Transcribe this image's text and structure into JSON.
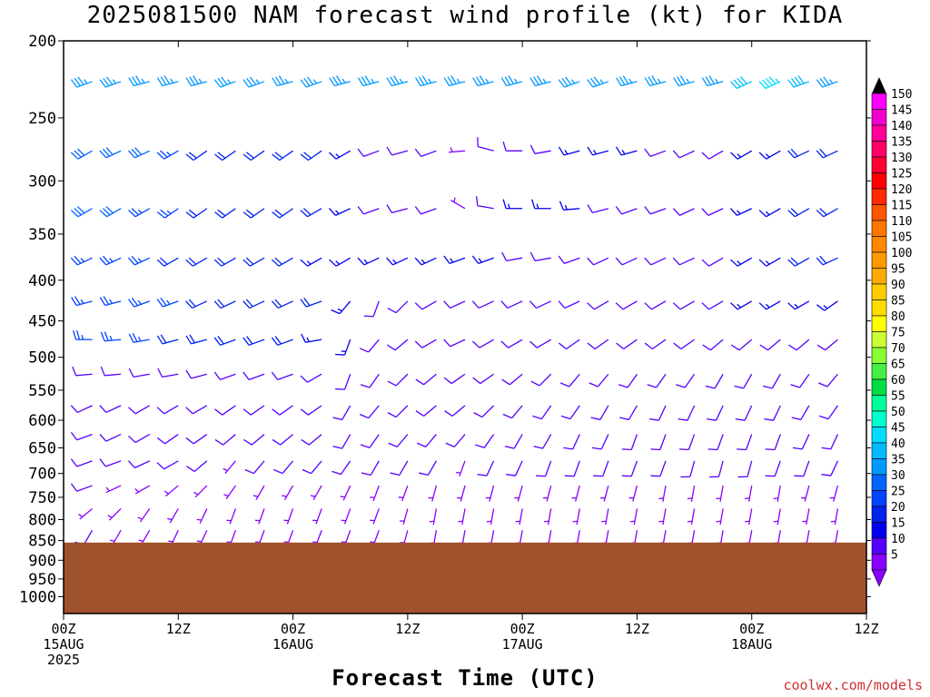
{
  "title": "2025081500 NAM forecast wind profile (kt) for KIDA",
  "xlabel": "Forecast Time (UTC)",
  "credit": "coolwx.com/models",
  "colors": {
    "ground": "#a0522d",
    "background": "#ffffff",
    "axis": "#000000",
    "credit": "#d03030"
  },
  "chart_data": {
    "type": "wind-barb-profile",
    "title": "2025081500 NAM forecast wind profile (kt) for KIDA",
    "xlabel": "Forecast Time (UTC)",
    "ylabel": "",
    "y_scale": "log-pressure",
    "ylim_hpa": [
      1050,
      200
    ],
    "xlim_hours": [
      0,
      84
    ],
    "y_ticks": [
      200,
      250,
      300,
      350,
      400,
      450,
      500,
      550,
      600,
      650,
      700,
      750,
      800,
      850,
      900,
      950,
      1000
    ],
    "x_ticks": [
      {
        "hour": 0,
        "line1": "00Z",
        "line2": "15AUG",
        "line3": "2025"
      },
      {
        "hour": 12,
        "line1": "12Z",
        "line2": "",
        "line3": ""
      },
      {
        "hour": 24,
        "line1": "00Z",
        "line2": "16AUG",
        "line3": ""
      },
      {
        "hour": 36,
        "line1": "12Z",
        "line2": "",
        "line3": ""
      },
      {
        "hour": 48,
        "line1": "00Z",
        "line2": "17AUG",
        "line3": ""
      },
      {
        "hour": 60,
        "line1": "12Z",
        "line2": "",
        "line3": ""
      },
      {
        "hour": 72,
        "line1": "00Z",
        "line2": "18AUG",
        "line3": ""
      },
      {
        "hour": 84,
        "line1": "12Z",
        "line2": "",
        "line3": ""
      }
    ],
    "ground_top_hpa": 855,
    "time_step_hours": 3,
    "levels_hpa": [
      225,
      275,
      325,
      375,
      425,
      475,
      525,
      575,
      625,
      675,
      725,
      775,
      825,
      875
    ],
    "colorbar": {
      "labels": [
        150,
        145,
        140,
        135,
        130,
        125,
        120,
        115,
        110,
        105,
        100,
        95,
        90,
        85,
        80,
        75,
        70,
        65,
        60,
        55,
        50,
        45,
        40,
        35,
        30,
        25,
        20,
        15,
        10,
        5
      ],
      "colors": [
        "#ff00ff",
        "#f200cc",
        "#ff0099",
        "#ff0066",
        "#ff0033",
        "#ff0000",
        "#ff2a00",
        "#ff5500",
        "#ff7700",
        "#ff8800",
        "#ff9900",
        "#ffaa00",
        "#ffcc00",
        "#ffdd00",
        "#ffff00",
        "#ccff33",
        "#88ff33",
        "#44ee44",
        "#00dd44",
        "#00ff99",
        "#00ffcc",
        "#00ddff",
        "#00bbff",
        "#0099ff",
        "#0066ff",
        "#0044ff",
        "#0022ee",
        "#0000ee",
        "#5500ff",
        "#8800ff"
      ]
    },
    "series": [
      {
        "level": 225,
        "speeds": [
          35,
          35,
          35,
          35,
          35,
          35,
          35,
          35,
          35,
          35,
          35,
          35,
          35,
          35,
          35,
          35,
          35,
          35,
          35,
          35,
          35,
          35,
          35,
          35,
          40,
          45,
          40,
          35,
          35,
          35
        ],
        "dirs": [
          250,
          250,
          250,
          255,
          255,
          255,
          250,
          250,
          255,
          250,
          255,
          255,
          255,
          255,
          255,
          255,
          255,
          255,
          250,
          250,
          255,
          255,
          255,
          255,
          245,
          245,
          250,
          250,
          250,
          250
        ]
      },
      {
        "level": 275,
        "speeds": [
          40,
          30,
          30,
          30,
          25,
          20,
          20,
          20,
          20,
          20,
          15,
          10,
          10,
          10,
          5,
          10,
          10,
          10,
          15,
          15,
          15,
          10,
          10,
          10,
          15,
          15,
          20,
          20,
          25,
          30
        ],
        "dirs": [
          245,
          240,
          245,
          245,
          240,
          235,
          235,
          235,
          235,
          235,
          240,
          250,
          255,
          250,
          265,
          285,
          270,
          260,
          255,
          255,
          255,
          250,
          245,
          240,
          240,
          240,
          245,
          245,
          245,
          245
        ]
      },
      {
        "level": 325,
        "speeds": [
          35,
          30,
          30,
          25,
          25,
          20,
          20,
          20,
          20,
          20,
          15,
          10,
          10,
          10,
          5,
          10,
          15,
          15,
          15,
          10,
          10,
          10,
          10,
          10,
          15,
          15,
          20,
          20,
          25,
          30
        ],
        "dirs": [
          245,
          240,
          240,
          240,
          235,
          235,
          235,
          235,
          235,
          240,
          245,
          250,
          255,
          250,
          300,
          280,
          270,
          270,
          265,
          255,
          250,
          250,
          245,
          245,
          245,
          240,
          240,
          240,
          245,
          245
        ]
      },
      {
        "level": 375,
        "speeds": [
          30,
          25,
          25,
          25,
          20,
          20,
          20,
          20,
          20,
          15,
          15,
          15,
          15,
          15,
          15,
          15,
          10,
          10,
          10,
          10,
          10,
          10,
          10,
          10,
          15,
          15,
          20,
          20,
          25,
          30
        ],
        "dirs": [
          250,
          245,
          245,
          245,
          240,
          240,
          240,
          240,
          240,
          240,
          240,
          245,
          245,
          245,
          250,
          250,
          260,
          260,
          250,
          245,
          245,
          245,
          245,
          240,
          240,
          240,
          240,
          245,
          245,
          245
        ]
      },
      {
        "level": 425,
        "speeds": [
          30,
          25,
          25,
          25,
          25,
          20,
          20,
          20,
          20,
          20,
          15,
          10,
          10,
          10,
          10,
          10,
          10,
          10,
          10,
          10,
          10,
          10,
          10,
          10,
          15,
          15,
          15,
          15,
          15,
          20
        ],
        "dirs": [
          260,
          255,
          255,
          250,
          250,
          245,
          245,
          245,
          245,
          250,
          220,
          200,
          225,
          240,
          245,
          245,
          245,
          245,
          245,
          240,
          240,
          240,
          240,
          240,
          240,
          240,
          240,
          235,
          235,
          240
        ]
      },
      {
        "level": 475,
        "speeds": [
          25,
          25,
          25,
          25,
          20,
          20,
          20,
          20,
          20,
          15,
          15,
          10,
          10,
          10,
          10,
          10,
          10,
          10,
          10,
          10,
          10,
          10,
          10,
          10,
          10,
          10,
          10,
          10,
          10,
          15
        ],
        "dirs": [
          270,
          270,
          265,
          260,
          255,
          255,
          250,
          250,
          250,
          260,
          200,
          220,
          230,
          240,
          245,
          240,
          240,
          240,
          235,
          235,
          235,
          235,
          235,
          230,
          230,
          230,
          230,
          230,
          230,
          235
        ]
      },
      {
        "level": 525,
        "speeds": [
          10,
          10,
          10,
          10,
          10,
          10,
          10,
          10,
          10,
          10,
          10,
          10,
          10,
          10,
          10,
          10,
          10,
          10,
          10,
          10,
          10,
          10,
          10,
          10,
          10,
          10,
          10,
          10,
          10,
          10
        ],
        "dirs": [
          270,
          265,
          265,
          260,
          260,
          255,
          250,
          250,
          250,
          240,
          200,
          215,
          225,
          230,
          235,
          235,
          230,
          225,
          220,
          220,
          215,
          215,
          215,
          210,
          210,
          210,
          215,
          220,
          225,
          230
        ]
      },
      {
        "level": 575,
        "speeds": [
          10,
          10,
          10,
          10,
          10,
          10,
          10,
          10,
          10,
          10,
          10,
          10,
          10,
          10,
          10,
          10,
          10,
          10,
          10,
          10,
          10,
          10,
          10,
          10,
          10,
          10,
          10,
          10,
          10,
          10
        ],
        "dirs": [
          250,
          245,
          245,
          240,
          240,
          240,
          235,
          235,
          235,
          235,
          210,
          220,
          225,
          230,
          230,
          225,
          220,
          215,
          215,
          210,
          210,
          205,
          205,
          205,
          205,
          205,
          210,
          215,
          220,
          225
        ]
      },
      {
        "level": 625,
        "speeds": [
          10,
          10,
          10,
          10,
          10,
          10,
          10,
          10,
          10,
          10,
          10,
          10,
          10,
          10,
          10,
          10,
          10,
          10,
          10,
          10,
          10,
          10,
          10,
          10,
          10,
          10,
          10,
          10,
          10,
          10
        ],
        "dirs": [
          250,
          250,
          245,
          240,
          235,
          235,
          230,
          230,
          230,
          230,
          210,
          215,
          220,
          220,
          220,
          215,
          210,
          210,
          205,
          205,
          200,
          200,
          200,
          200,
          200,
          200,
          205,
          205,
          210,
          215
        ]
      },
      {
        "level": 675,
        "speeds": [
          10,
          10,
          10,
          10,
          10,
          10,
          5,
          10,
          10,
          10,
          10,
          10,
          10,
          10,
          5,
          10,
          10,
          10,
          10,
          10,
          10,
          10,
          10,
          10,
          10,
          10,
          10,
          10,
          10,
          10
        ],
        "dirs": [
          250,
          250,
          250,
          245,
          240,
          230,
          220,
          220,
          220,
          220,
          215,
          210,
          210,
          210,
          200,
          205,
          205,
          200,
          200,
          200,
          200,
          200,
          195,
          195,
          195,
          200,
          200,
          205,
          205,
          210
        ]
      },
      {
        "level": 725,
        "speeds": [
          10,
          10,
          5,
          5,
          5,
          5,
          5,
          5,
          5,
          5,
          5,
          5,
          5,
          5,
          5,
          5,
          5,
          5,
          5,
          5,
          5,
          5,
          5,
          5,
          5,
          5,
          5,
          5,
          5,
          5
        ],
        "dirs": [
          250,
          250,
          245,
          240,
          230,
          225,
          215,
          210,
          210,
          210,
          205,
          200,
          200,
          195,
          195,
          195,
          195,
          195,
          195,
          195,
          195,
          190,
          190,
          190,
          190,
          190,
          195,
          195,
          200,
          205
        ]
      },
      {
        "level": 775,
        "speeds": [
          10,
          5,
          5,
          5,
          5,
          5,
          5,
          5,
          5,
          5,
          5,
          5,
          5,
          5,
          5,
          5,
          5,
          5,
          5,
          5,
          5,
          5,
          5,
          5,
          5,
          5,
          5,
          5,
          5,
          5
        ],
        "dirs": [
          240,
          230,
          225,
          215,
          210,
          205,
          200,
          200,
          200,
          200,
          200,
          200,
          195,
          190,
          190,
          190,
          190,
          190,
          190,
          190,
          190,
          190,
          190,
          190,
          190,
          190,
          190,
          190,
          195,
          195
        ]
      },
      {
        "level": 825,
        "speeds": [
          10,
          10,
          5,
          5,
          5,
          5,
          5,
          5,
          5,
          5,
          5,
          5,
          5,
          5,
          5,
          5,
          5,
          5,
          5,
          5,
          5,
          5,
          5,
          5,
          5,
          5,
          5,
          5,
          5,
          5
        ],
        "dirs": [
          230,
          210,
          210,
          210,
          205,
          205,
          200,
          200,
          200,
          200,
          200,
          200,
          195,
          190,
          190,
          190,
          190,
          190,
          190,
          190,
          190,
          190,
          190,
          190,
          190,
          190,
          190,
          190,
          190,
          190
        ]
      },
      {
        "level": 875,
        "speeds": [
          10,
          10,
          5,
          5,
          5,
          5,
          5,
          5,
          5,
          5,
          5,
          5,
          5,
          5,
          5,
          5,
          5,
          5,
          5,
          5,
          5,
          5,
          5,
          5,
          5,
          5,
          5,
          5,
          5,
          5
        ],
        "dirs": [
          220,
          200,
          200,
          200,
          200,
          200,
          200,
          200,
          200,
          200,
          200,
          200,
          200,
          190,
          190,
          190,
          190,
          190,
          190,
          190,
          190,
          190,
          190,
          190,
          190,
          190,
          190,
          190,
          190,
          190
        ]
      }
    ]
  }
}
